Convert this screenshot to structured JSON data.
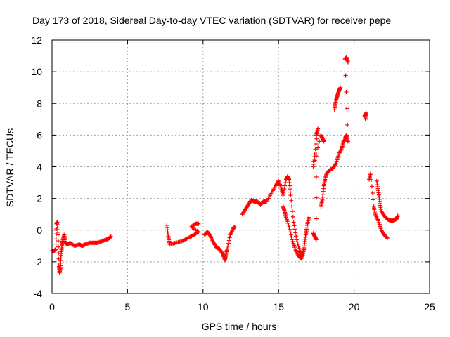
{
  "chart_data": {
    "type": "scatter",
    "title": "Day 173 of 2018, Sidereal Day-to-day VTEC variation (SDTVAR) for receiver pepe",
    "xlabel": "GPS time / hours",
    "ylabel": "SDTVAR / TECUs",
    "xlim": [
      0,
      25
    ],
    "ylim": [
      -4,
      12
    ],
    "xticks": [
      0,
      5,
      10,
      15,
      20,
      25
    ],
    "yticks": [
      -4,
      -2,
      0,
      2,
      4,
      6,
      8,
      10,
      12
    ],
    "grid": true,
    "marker": "+",
    "series": [
      {
        "name": "SDTVAR",
        "color": "#ff0000",
        "segments": [
          [
            [
              0.0,
              -1.3
            ],
            [
              0.15,
              -1.3
            ],
            [
              0.25,
              -1.2
            ],
            [
              0.3,
              0.4
            ],
            [
              0.35,
              0.5
            ],
            [
              0.4,
              -0.3
            ],
            [
              0.45,
              -2.2
            ],
            [
              0.5,
              -2.7
            ],
            [
              0.55,
              -2.4
            ],
            [
              0.6,
              -1.6
            ],
            [
              0.65,
              -1.0
            ],
            [
              0.7,
              -0.7
            ],
            [
              0.8,
              -0.3
            ],
            [
              0.9,
              -0.8
            ],
            [
              1.0,
              -0.9
            ],
            [
              1.2,
              -0.8
            ],
            [
              1.5,
              -1.0
            ],
            [
              1.8,
              -0.9
            ],
            [
              2.0,
              -1.0
            ],
            [
              2.2,
              -0.9
            ],
            [
              2.5,
              -0.8
            ],
            [
              2.8,
              -0.8
            ],
            [
              3.0,
              -0.8
            ],
            [
              3.3,
              -0.7
            ],
            [
              3.6,
              -0.6
            ],
            [
              3.8,
              -0.5
            ],
            [
              3.9,
              -0.4
            ]
          ],
          [
            [
              7.6,
              0.3
            ],
            [
              7.7,
              -0.4
            ],
            [
              7.8,
              -0.9
            ],
            [
              8.2,
              -0.8
            ],
            [
              8.6,
              -0.7
            ],
            [
              9.0,
              -0.5
            ],
            [
              9.4,
              -0.3
            ],
            [
              9.7,
              -0.1
            ],
            [
              9.2,
              0.2
            ],
            [
              9.5,
              0.4
            ],
            [
              9.7,
              0.4
            ]
          ],
          [
            [
              10.1,
              -0.3
            ],
            [
              10.3,
              -0.1
            ],
            [
              10.5,
              -0.4
            ],
            [
              10.7,
              -0.8
            ],
            [
              10.9,
              -1.1
            ],
            [
              11.1,
              -1.2
            ],
            [
              11.3,
              -1.5
            ],
            [
              11.45,
              -1.9
            ],
            [
              11.5,
              -1.6
            ],
            [
              11.6,
              -1.2
            ],
            [
              11.8,
              -0.3
            ],
            [
              12.0,
              0.1
            ],
            [
              12.1,
              0.2
            ]
          ],
          [
            [
              12.6,
              1.0
            ],
            [
              12.8,
              1.3
            ],
            [
              13.0,
              1.6
            ],
            [
              13.2,
              1.9
            ],
            [
              13.4,
              1.8
            ],
            [
              13.6,
              1.8
            ],
            [
              13.8,
              1.6
            ],
            [
              14.0,
              1.8
            ],
            [
              14.2,
              1.8
            ],
            [
              14.5,
              2.3
            ],
            [
              14.8,
              2.8
            ],
            [
              15.0,
              3.1
            ],
            [
              15.2,
              2.6
            ],
            [
              15.3,
              2.2
            ],
            [
              15.5,
              3.2
            ],
            [
              15.6,
              3.4
            ],
            [
              15.7,
              3.2
            ],
            [
              15.8,
              2.2
            ],
            [
              16.0,
              0.5
            ],
            [
              16.2,
              -0.6
            ],
            [
              16.4,
              -1.3
            ],
            [
              16.5,
              -1.5
            ],
            [
              16.6,
              -1.6
            ],
            [
              16.7,
              -1.0
            ],
            [
              16.8,
              -0.3
            ],
            [
              16.9,
              0.3
            ],
            [
              17.0,
              0.8
            ]
          ],
          [
            [
              15.3,
              1.5
            ],
            [
              15.4,
              1.2
            ],
            [
              15.5,
              0.8
            ],
            [
              15.7,
              0.2
            ],
            [
              15.9,
              -0.6
            ],
            [
              16.1,
              -1.2
            ],
            [
              16.3,
              -1.6
            ],
            [
              16.5,
              -1.8
            ],
            [
              16.7,
              -1.2
            ]
          ],
          [
            [
              17.3,
              -0.2
            ],
            [
              17.4,
              -0.4
            ],
            [
              17.5,
              -0.6
            ],
            [
              17.5,
              6.0
            ],
            [
              17.6,
              6.4
            ],
            [
              17.4,
              4.8
            ],
            [
              17.3,
              4.0
            ],
            [
              17.8,
              6.0
            ],
            [
              17.9,
              5.8
            ],
            [
              18.0,
              5.6
            ]
          ],
          [
            [
              17.8,
              1.5
            ],
            [
              17.9,
              1.9
            ],
            [
              18.0,
              2.8
            ],
            [
              18.1,
              3.3
            ],
            [
              18.2,
              3.6
            ],
            [
              18.4,
              3.8
            ],
            [
              18.6,
              3.9
            ],
            [
              18.8,
              4.2
            ],
            [
              19.0,
              4.8
            ],
            [
              19.2,
              5.2
            ],
            [
              19.3,
              5.6
            ],
            [
              19.4,
              5.7
            ]
          ],
          [
            [
              18.7,
              7.6
            ],
            [
              18.8,
              8.2
            ],
            [
              18.9,
              8.5
            ],
            [
              19.0,
              8.8
            ],
            [
              19.1,
              9.0
            ]
          ],
          [
            [
              19.4,
              5.8
            ],
            [
              19.5,
              6.0
            ],
            [
              19.6,
              5.6
            ],
            [
              19.4,
              10.8
            ],
            [
              19.5,
              10.9
            ],
            [
              19.6,
              10.6
            ]
          ],
          [
            [
              20.7,
              7.2
            ],
            [
              20.8,
              7.4
            ],
            [
              20.75,
              7.0
            ]
          ],
          [
            [
              21.0,
              3.2
            ],
            [
              21.1,
              3.6
            ],
            [
              21.3,
              1.5
            ],
            [
              21.4,
              1.0
            ],
            [
              21.6,
              0.6
            ],
            [
              21.8,
              0.0
            ],
            [
              22.0,
              -0.3
            ],
            [
              22.2,
              -0.5
            ]
          ],
          [
            [
              21.5,
              3.1
            ],
            [
              21.6,
              2.5
            ],
            [
              21.7,
              1.8
            ],
            [
              21.8,
              1.2
            ],
            [
              22.0,
              0.9
            ],
            [
              22.2,
              0.7
            ],
            [
              22.4,
              0.6
            ],
            [
              22.6,
              0.6
            ],
            [
              22.8,
              0.7
            ],
            [
              22.9,
              0.9
            ]
          ]
        ]
      }
    ]
  }
}
